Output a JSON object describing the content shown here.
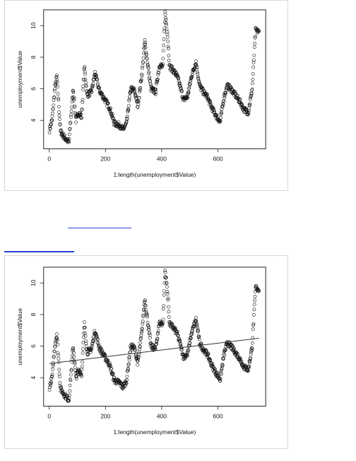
{
  "chart_data": [
    {
      "type": "scatter",
      "xlabel": "1:length(unemployment$Value)",
      "ylabel": "unemployment$Value",
      "xlim": [
        -20,
        770
      ],
      "ylim": [
        2.2,
        11.0
      ],
      "xticks": [
        "0",
        "200",
        "400",
        "600"
      ],
      "yticks": [
        "4",
        "6",
        "8",
        "10"
      ],
      "xtick_values": [
        0,
        200,
        400,
        600
      ],
      "ytick_values": [
        4,
        6,
        8,
        10
      ],
      "marker": "open-circle",
      "n_points": 746,
      "series_shape": {
        "x": [
          1,
          10,
          20,
          27,
          40,
          55,
          70,
          85,
          95,
          105,
          115,
          125,
          135,
          150,
          163,
          178,
          195,
          215,
          232,
          250,
          262,
          275,
          290,
          303,
          315,
          330,
          340,
          350,
          362,
          378,
          392,
          404,
          412,
          420,
          428,
          440,
          455,
          468,
          478,
          492,
          506,
          522,
          535,
          548,
          562,
          578,
          593,
          608,
          622,
          633,
          646,
          662,
          678,
          692,
          708,
          722,
          734,
          746
        ],
        "y": [
          3.4,
          4.0,
          6.0,
          6.8,
          3.3,
          2.9,
          2.6,
          6.0,
          4.0,
          4.5,
          4.2,
          7.4,
          5.6,
          5.8,
          7.0,
          5.9,
          5.4,
          4.8,
          3.8,
          3.7,
          3.4,
          3.8,
          6.0,
          5.9,
          4.9,
          7.0,
          9.0,
          7.6,
          6.0,
          5.8,
          7.5,
          7.4,
          10.8,
          9.6,
          7.4,
          7.2,
          6.8,
          6.0,
          5.3,
          5.5,
          6.8,
          7.7,
          6.2,
          5.8,
          5.5,
          4.8,
          4.3,
          3.9,
          5.5,
          6.2,
          6.0,
          5.6,
          5.2,
          4.7,
          4.5,
          6.0,
          9.7,
          9.6
        ]
      }
    },
    {
      "type": "scatter",
      "xlabel": "1:length(unemployment$Value)",
      "ylabel": "unemployment$Value",
      "xlim": [
        -20,
        770
      ],
      "ylim": [
        2.2,
        11.0
      ],
      "xticks": [
        "0",
        "200",
        "400",
        "600"
      ],
      "yticks": [
        "4",
        "6",
        "8",
        "10"
      ],
      "xtick_values": [
        0,
        200,
        400,
        600
      ],
      "ytick_values": [
        4,
        6,
        8,
        10
      ],
      "marker": "open-circle",
      "n_points": 746,
      "series_shape": {
        "x": [
          1,
          10,
          20,
          27,
          40,
          55,
          70,
          85,
          95,
          105,
          115,
          125,
          135,
          150,
          163,
          178,
          195,
          215,
          232,
          250,
          262,
          275,
          290,
          303,
          315,
          330,
          340,
          350,
          362,
          378,
          392,
          404,
          412,
          420,
          428,
          440,
          455,
          468,
          478,
          492,
          506,
          522,
          535,
          548,
          562,
          578,
          593,
          608,
          622,
          633,
          646,
          662,
          678,
          692,
          708,
          722,
          734,
          746
        ],
        "y": [
          3.4,
          4.0,
          6.0,
          6.8,
          3.3,
          2.9,
          2.6,
          6.0,
          4.0,
          4.5,
          4.2,
          7.4,
          5.6,
          5.8,
          7.0,
          5.9,
          5.4,
          4.8,
          3.8,
          3.7,
          3.4,
          3.8,
          6.0,
          5.9,
          4.9,
          7.0,
          9.0,
          7.6,
          6.0,
          5.8,
          7.5,
          7.4,
          10.8,
          9.6,
          7.4,
          7.2,
          6.8,
          6.0,
          5.3,
          5.5,
          6.8,
          7.7,
          6.2,
          5.8,
          5.5,
          4.8,
          4.3,
          3.9,
          5.5,
          6.2,
          6.0,
          5.6,
          5.2,
          4.7,
          4.5,
          6.0,
          9.7,
          9.6
        ]
      },
      "trend_line": {
        "x": [
          1,
          746
        ],
        "y": [
          4.9,
          6.5
        ]
      }
    }
  ]
}
